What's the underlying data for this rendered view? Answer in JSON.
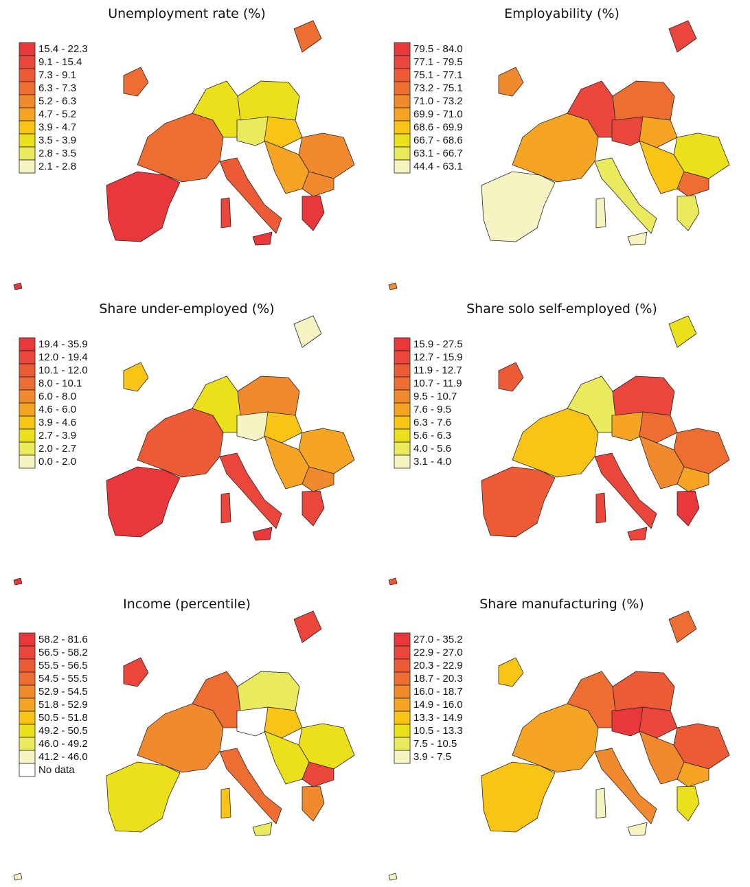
{
  "panels": [
    {
      "title": "Unemployment rate (%)",
      "legend": [
        {
          "label": "15.4 - 22.3",
          "color": "#e8383b"
        },
        {
          "label": "9.1 - 15.4",
          "color": "#ea463b"
        },
        {
          "label": "7.3 - 9.1",
          "color": "#ec5a36"
        },
        {
          "label": "6.3 - 7.3",
          "color": "#ee6d33"
        },
        {
          "label": "5.2 - 6.3",
          "color": "#f18a2e"
        },
        {
          "label": "4.7 - 5.2",
          "color": "#f5a523"
        },
        {
          "label": "3.9 - 4.7",
          "color": "#f9c416"
        },
        {
          "label": "3.5 - 3.9",
          "color": "#ece01c"
        },
        {
          "label": "2.8 - 3.5",
          "color": "#e9ea5e"
        },
        {
          "label": "2.1 - 2.8",
          "color": "#f7f4c3"
        }
      ]
    },
    {
      "title": "Employability (%)",
      "legend": [
        {
          "label": "79.5 - 84.0",
          "color": "#e8383b"
        },
        {
          "label": "77.1 - 79.5",
          "color": "#ea463b"
        },
        {
          "label": "75.1 - 77.1",
          "color": "#ec5a36"
        },
        {
          "label": "73.2 - 75.1",
          "color": "#ee6d33"
        },
        {
          "label": "71.0 - 73.2",
          "color": "#f18a2e"
        },
        {
          "label": "69.9 - 71.0",
          "color": "#f5a523"
        },
        {
          "label": "68.6 - 69.9",
          "color": "#f9c416"
        },
        {
          "label": "66.7 - 68.6",
          "color": "#ece01c"
        },
        {
          "label": "63.1 - 66.7",
          "color": "#e9ea5e"
        },
        {
          "label": "44.4 - 63.1",
          "color": "#f7f4c3"
        }
      ]
    },
    {
      "title": "Share under-employed (%)",
      "legend": [
        {
          "label": "19.4 - 35.9",
          "color": "#e8383b"
        },
        {
          "label": "12.0 - 19.4",
          "color": "#ea463b"
        },
        {
          "label": "10.1 - 12.0",
          "color": "#ec5a36"
        },
        {
          "label": "8.0 - 10.1",
          "color": "#ee6d33"
        },
        {
          "label": "6.0 - 8.0",
          "color": "#f18a2e"
        },
        {
          "label": "4.6 - 6.0",
          "color": "#f5a523"
        },
        {
          "label": "3.9 - 4.6",
          "color": "#f9c416"
        },
        {
          "label": "2.7 - 3.9",
          "color": "#ece01c"
        },
        {
          "label": "2.0 - 2.7",
          "color": "#e9ea5e"
        },
        {
          "label": "0.0 - 2.0",
          "color": "#f7f4c3"
        }
      ]
    },
    {
      "title": "Share solo self-employed (%)",
      "legend": [
        {
          "label": "15.9 - 27.5",
          "color": "#e8383b"
        },
        {
          "label": "12.7 - 15.9",
          "color": "#ea463b"
        },
        {
          "label": "11.9 - 12.7",
          "color": "#ec5a36"
        },
        {
          "label": "10.7 - 11.9",
          "color": "#ee6d33"
        },
        {
          "label": "9.5 - 10.7",
          "color": "#f18a2e"
        },
        {
          "label": "7.6 - 9.5",
          "color": "#f5a523"
        },
        {
          "label": "6.3 - 7.6",
          "color": "#f9c416"
        },
        {
          "label": "5.6 - 6.3",
          "color": "#ece01c"
        },
        {
          "label": "4.0 - 5.6",
          "color": "#e9ea5e"
        },
        {
          "label": "3.1 - 4.0",
          "color": "#f7f4c3"
        }
      ]
    },
    {
      "title": "Income (percentile)",
      "legend": [
        {
          "label": "58.2 - 81.6",
          "color": "#e8383b"
        },
        {
          "label": "56.5 - 58.2",
          "color": "#ea463b"
        },
        {
          "label": "55.5 - 56.5",
          "color": "#ec5a36"
        },
        {
          "label": "54.5 - 55.5",
          "color": "#ee6d33"
        },
        {
          "label": "52.9 - 54.5",
          "color": "#f18a2e"
        },
        {
          "label": "51.8 - 52.9",
          "color": "#f5a523"
        },
        {
          "label": "50.5 - 51.8",
          "color": "#f9c416"
        },
        {
          "label": "49.2 - 50.5",
          "color": "#ece01c"
        },
        {
          "label": "46.0 - 49.2",
          "color": "#e9ea5e"
        },
        {
          "label": "41.2 - 46.0",
          "color": "#f7f4c3"
        },
        {
          "label": "No data",
          "color": "#ffffff"
        }
      ]
    },
    {
      "title": "Share manufacturing (%)",
      "legend": [
        {
          "label": "27.0 - 35.2",
          "color": "#e8383b"
        },
        {
          "label": "22.9 - 27.0",
          "color": "#ea463b"
        },
        {
          "label": "20.3 - 22.9",
          "color": "#ec5a36"
        },
        {
          "label": "18.7 - 20.3",
          "color": "#ee6d33"
        },
        {
          "label": "16.0 - 18.7",
          "color": "#f18a2e"
        },
        {
          "label": "14.9 - 16.0",
          "color": "#f5a523"
        },
        {
          "label": "13.3 - 14.9",
          "color": "#f9c416"
        },
        {
          "label": "10.5 - 13.3",
          "color": "#ece01c"
        },
        {
          "label": "7.5 - 10.5",
          "color": "#e9ea5e"
        },
        {
          "label": "3.9 - 7.5",
          "color": "#f7f4c3"
        }
      ]
    }
  ]
}
